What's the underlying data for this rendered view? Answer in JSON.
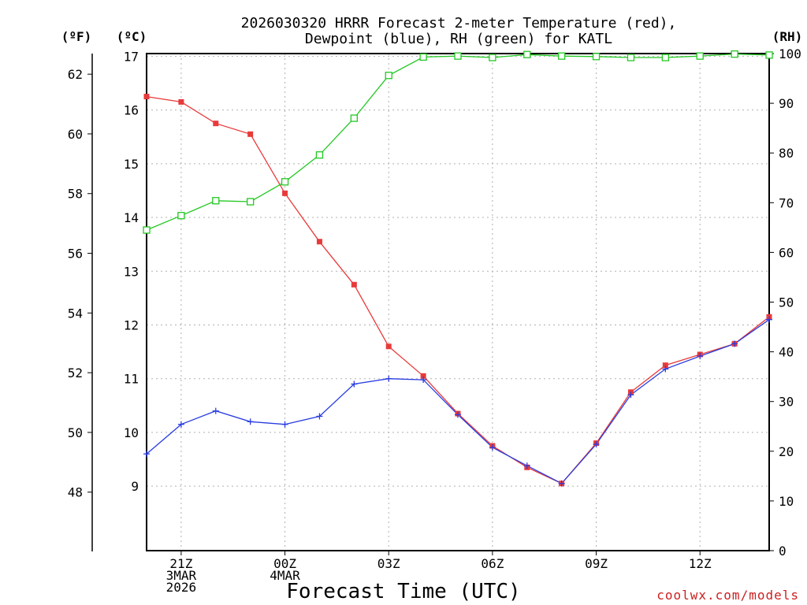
{
  "chart_data": {
    "type": "line",
    "title_line1": "2026030320 HRRR Forecast 2-meter Temperature (red),",
    "title_line2": "Dewpoint (blue), RH (green) for KATL",
    "xlabel": "Forecast Time (UTC)",
    "credit": "coolwx.com/models",
    "unit_f": "(ºF)",
    "unit_c": "(ºC)",
    "unit_rh": "(RH)",
    "x": [
      20,
      21,
      22,
      23,
      24,
      25,
      26,
      27,
      28,
      29,
      30,
      31,
      32,
      33,
      34,
      35,
      36,
      37,
      38
    ],
    "xlim": [
      20,
      38
    ],
    "x_ticks": [
      {
        "x": 21,
        "lines": [
          "21Z",
          "3MAR",
          "2026"
        ]
      },
      {
        "x": 24,
        "lines": [
          "00Z",
          "4MAR"
        ]
      },
      {
        "x": 27,
        "lines": [
          "03Z"
        ]
      },
      {
        "x": 30,
        "lines": [
          "06Z"
        ]
      },
      {
        "x": 33,
        "lines": [
          "09Z"
        ]
      },
      {
        "x": 36,
        "lines": [
          "12Z"
        ]
      }
    ],
    "celsius_axis": {
      "ylim": [
        7.8,
        17.05
      ],
      "ticks": [
        9,
        10,
        11,
        12,
        13,
        14,
        15,
        16,
        17
      ]
    },
    "fahrenheit_axis": {
      "ticks": [
        48,
        50,
        52,
        54,
        56,
        58,
        60,
        62
      ]
    },
    "rh_axis": {
      "ylim": [
        0,
        100
      ],
      "ticks": [
        0,
        10,
        20,
        30,
        40,
        50,
        60,
        70,
        80,
        90,
        100
      ]
    },
    "series": [
      {
        "name": "2-meter Temperature",
        "axis": "C",
        "color": "#e83a3a",
        "marker": "filled-square",
        "values": [
          16.25,
          16.15,
          15.75,
          15.55,
          14.45,
          13.55,
          12.75,
          11.6,
          11.05,
          10.35,
          9.75,
          9.35,
          9.05,
          9.8,
          10.75,
          11.25,
          11.45,
          11.65,
          12.15
        ]
      },
      {
        "name": "Dewpoint",
        "axis": "C",
        "color": "#2a3de0",
        "marker": "plus",
        "values": [
          9.6,
          10.15,
          10.4,
          10.2,
          10.15,
          10.3,
          10.9,
          11.0,
          10.98,
          10.33,
          9.72,
          9.38,
          9.05,
          9.78,
          10.7,
          11.18,
          11.42,
          11.65,
          12.1
        ]
      },
      {
        "name": "RH",
        "axis": "RH",
        "color": "#22c822",
        "marker": "open-square",
        "values": [
          64.5,
          67.4,
          70.4,
          70.2,
          74.2,
          79.6,
          87.0,
          95.6,
          99.3,
          99.5,
          99.2,
          99.8,
          99.5,
          99.4,
          99.2,
          99.2,
          99.5,
          99.9,
          99.7
        ]
      }
    ]
  }
}
